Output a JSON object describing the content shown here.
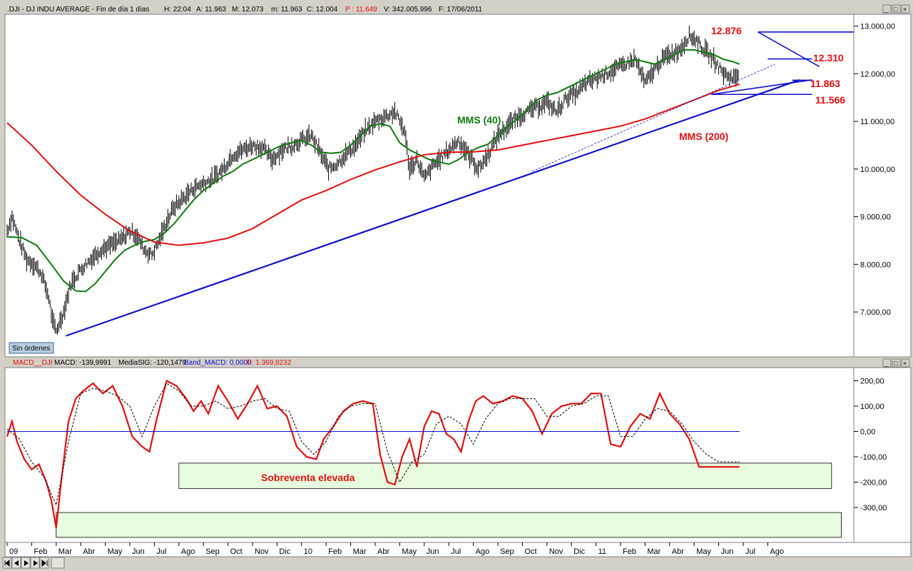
{
  "header": {
    "symbol": ".DJI - DJ INDU AVERAGE - Fin de día 1 días",
    "h": "H: 22:04",
    "a": "A: 11.963",
    "m": "M: 12.073",
    "mm": "m: 11.963",
    "c": "C: 12.004",
    "p": "P : 11.649",
    "v": "V: 342.005.996",
    "f": "F: 17/06/2011"
  },
  "macd_header": {
    "name": "MACD__DJI",
    "macd": "MACD: -139,9991",
    "signal": "MediaSIG: -120,1479",
    "band": "Band_MACD: 0,0000",
    "p": "P: 1.369,8232"
  },
  "sin_ordenes": "Sin órdenes",
  "x_labels": [
    "09",
    "Feb",
    "Mar",
    "Abr",
    "May",
    "Jun",
    "Jul",
    "Ago",
    "Sep",
    "Oct",
    "Nov",
    "Dic",
    "10",
    "Feb",
    "Mar",
    "Abr",
    "May",
    "Jun",
    "Jul",
    "Ago",
    "Sep",
    "Oct",
    "Nov",
    "Dic",
    "11",
    "Feb",
    "Mar",
    "Abr",
    "May",
    "Jun",
    "Jul",
    "Ago"
  ],
  "colors": {
    "bg": "#ffffff",
    "price": "#000000",
    "mms40": "#0e7a0e",
    "mms200": "#e01010",
    "trend": "#1010cc",
    "macd": "#e01010",
    "zone": "#e8fce0",
    "annot": "#e01010"
  },
  "chart_data": [
    {
      "type": "line",
      "title": ".DJI - DJ INDU AVERAGE",
      "ylim": [
        6100,
        13150
      ],
      "y_ticks": [
        "13.000,00",
        "12.000,00",
        "11.000,00",
        "10.000,00",
        "9.000,00",
        "8.000,00",
        "7.000,00"
      ],
      "x_unit": "month index since Jan 2009",
      "series": [
        {
          "name": "DJI",
          "role": "price",
          "x": [
            0,
            0.2,
            0.5,
            0.8,
            1.1,
            1.4,
            1.7,
            1.85,
            2.0,
            2.3,
            2.6,
            3.0,
            3.4,
            3.8,
            4.2,
            4.6,
            5.0,
            5.3,
            5.6,
            5.9,
            6.2,
            6.5,
            6.8,
            7.2,
            7.6,
            8.0,
            8.4,
            8.8,
            9.2,
            9.6,
            10.0,
            10.4,
            10.8,
            11.2,
            11.6,
            12.0,
            12.4,
            12.8,
            13.1,
            13.4,
            13.8,
            14.2,
            14.6,
            15.0,
            15.4,
            15.8,
            16.2,
            16.4,
            16.7,
            17.0,
            17.4,
            17.8,
            18.0,
            18.4,
            18.8,
            19.2,
            19.6,
            20.0,
            20.4,
            20.8,
            21.2,
            21.6,
            22.0,
            22.4,
            22.8,
            23.2,
            23.6,
            24.0,
            24.4,
            24.8,
            25.2,
            25.6,
            26.0,
            26.4,
            26.7,
            27.0,
            27.4,
            27.8,
            28.1,
            28.4,
            28.8,
            29.2,
            29.6,
            29.85
          ],
          "y": [
            8700,
            9000,
            8500,
            8100,
            8000,
            7800,
            7300,
            6800,
            6600,
            7000,
            7600,
            7900,
            8100,
            8300,
            8400,
            8500,
            8700,
            8600,
            8300,
            8200,
            8500,
            8900,
            9200,
            9400,
            9600,
            9700,
            9800,
            10000,
            10300,
            10400,
            10500,
            10450,
            10200,
            10400,
            10500,
            10600,
            10700,
            10300,
            10000,
            10100,
            10300,
            10500,
            10800,
            11000,
            11100,
            11200,
            10800,
            10000,
            10200,
            9800,
            10100,
            10300,
            10400,
            10600,
            10300,
            10000,
            10300,
            10700,
            10900,
            11100,
            11200,
            11300,
            11400,
            11200,
            11500,
            11600,
            11800,
            11900,
            12000,
            12100,
            12200,
            12300,
            11800,
            12100,
            12300,
            12400,
            12500,
            12800,
            12700,
            12500,
            12300,
            12000,
            11900,
            12004
          ]
        },
        {
          "name": "MMS (40)",
          "role": "ma40",
          "x": [
            0,
            0.6,
            1.2,
            1.8,
            2.3,
            2.8,
            3.2,
            3.6,
            4.0,
            4.4,
            4.8,
            5.2,
            5.6,
            6.0,
            6.4,
            6.8,
            7.2,
            7.6,
            8.0,
            8.4,
            8.8,
            9.2,
            9.6,
            10.0,
            10.4,
            10.8,
            11.2,
            11.6,
            12.0,
            12.4,
            12.8,
            13.2,
            13.6,
            14.0,
            14.4,
            14.8,
            15.2,
            15.6,
            16.0,
            16.4,
            16.8,
            17.2,
            17.6,
            18.0,
            18.4,
            18.8,
            19.2,
            19.6,
            20.0,
            20.4,
            20.8,
            21.2,
            21.6,
            22.0,
            22.4,
            22.8,
            23.2,
            23.6,
            24.0,
            24.4,
            24.8,
            25.2,
            25.6,
            26.0,
            26.4,
            26.8,
            27.2,
            27.6,
            28.0,
            28.4,
            28.8,
            29.2,
            29.6,
            29.85
          ],
          "y": [
            8580,
            8560,
            8400,
            8000,
            7650,
            7440,
            7430,
            7600,
            7850,
            8100,
            8300,
            8400,
            8480,
            8520,
            8650,
            8850,
            9100,
            9350,
            9550,
            9700,
            9850,
            9950,
            10100,
            10200,
            10300,
            10400,
            10500,
            10550,
            10600,
            10500,
            10350,
            10330,
            10350,
            10500,
            10700,
            10900,
            10950,
            10900,
            10550,
            10400,
            10300,
            10200,
            10150,
            10100,
            10200,
            10350,
            10450,
            10520,
            10700,
            10900,
            11050,
            11250,
            11450,
            11550,
            11600,
            11700,
            11800,
            11900,
            12000,
            12100,
            12200,
            12250,
            12300,
            12250,
            12200,
            12300,
            12400,
            12500,
            12500,
            12450,
            12400,
            12300,
            12250,
            12200
          ]
        },
        {
          "name": "MMS (200)",
          "role": "ma200",
          "x": [
            0,
            1,
            2,
            3,
            4,
            5,
            6,
            7,
            8,
            9,
            10,
            11,
            12,
            13,
            14,
            15,
            16,
            17,
            18,
            19,
            20,
            21,
            22,
            23,
            24,
            25,
            26,
            27,
            28,
            29,
            29.85
          ],
          "y": [
            10970,
            10500,
            9950,
            9450,
            9050,
            8700,
            8470,
            8400,
            8450,
            8550,
            8750,
            9050,
            9350,
            9550,
            9780,
            9980,
            10150,
            10300,
            10350,
            10360,
            10400,
            10500,
            10600,
            10700,
            10800,
            10900,
            11050,
            11250,
            11450,
            11650,
            11780
          ]
        }
      ]
    },
    {
      "type": "line",
      "title": "MACD__DJI",
      "ylim": [
        -410,
        250
      ],
      "y_ticks": [
        "200,00",
        "100,00",
        "0,00",
        "-100,00",
        "-200,00",
        "-300,00"
      ],
      "series": [
        {
          "name": "MACD",
          "role": "macd",
          "x": [
            0,
            0.2,
            0.4,
            0.7,
            1.0,
            1.3,
            1.6,
            1.8,
            2.0,
            2.2,
            2.5,
            2.8,
            3.1,
            3.5,
            3.9,
            4.3,
            4.7,
            5.1,
            5.5,
            5.8,
            6.1,
            6.5,
            6.9,
            7.3,
            7.6,
            7.9,
            8.2,
            8.6,
            9.0,
            9.4,
            9.8,
            10.2,
            10.6,
            11.0,
            11.4,
            11.8,
            12.2,
            12.6,
            12.9,
            13.3,
            13.7,
            14.1,
            14.5,
            14.9,
            15.2,
            15.5,
            15.8,
            16.1,
            16.4,
            16.7,
            17.0,
            17.3,
            17.6,
            17.9,
            18.2,
            18.5,
            18.8,
            19.1,
            19.4,
            19.8,
            20.2,
            20.6,
            21.0,
            21.4,
            21.8,
            22.2,
            22.6,
            23.0,
            23.4,
            23.8,
            24.2,
            24.6,
            25.0,
            25.4,
            25.8,
            26.2,
            26.6,
            27.0,
            27.4,
            27.8,
            28.2,
            28.6,
            29.0,
            29.4,
            29.85
          ],
          "y": [
            -20,
            40,
            -40,
            -110,
            -150,
            -130,
            -200,
            -270,
            -380,
            -200,
            40,
            130,
            160,
            190,
            150,
            180,
            100,
            -20,
            -60,
            -80,
            50,
            200,
            180,
            130,
            80,
            120,
            70,
            180,
            120,
            50,
            110,
            180,
            90,
            100,
            60,
            -60,
            -100,
            -110,
            -30,
            20,
            80,
            110,
            120,
            110,
            -90,
            -200,
            -210,
            -100,
            -30,
            -140,
            20,
            80,
            70,
            -10,
            -30,
            -80,
            40,
            120,
            140,
            110,
            120,
            140,
            130,
            80,
            -10,
            70,
            100,
            110,
            110,
            150,
            150,
            -50,
            -60,
            20,
            70,
            50,
            150,
            70,
            30,
            -30,
            -140,
            -140,
            -140,
            -140,
            -140
          ]
        },
        {
          "name": "MediaSIG",
          "role": "signal",
          "x": [
            0,
            0.5,
            1,
            1.5,
            2,
            2.5,
            3,
            3.5,
            4,
            4.5,
            5,
            5.5,
            6,
            6.5,
            7,
            7.5,
            8,
            8.5,
            9,
            9.5,
            10,
            10.5,
            11,
            11.5,
            12,
            12.5,
            13,
            13.5,
            14,
            14.5,
            15,
            15.5,
            16,
            16.5,
            17,
            17.5,
            18,
            18.5,
            19,
            19.5,
            20,
            20.5,
            21,
            21.5,
            22,
            22.5,
            23,
            23.5,
            24,
            24.5,
            25,
            25.5,
            26,
            26.5,
            27,
            27.5,
            28,
            28.5,
            29,
            29.5,
            29.85
          ],
          "y": [
            10,
            -30,
            -120,
            -180,
            -290,
            -40,
            150,
            170,
            160,
            140,
            100,
            -20,
            100,
            190,
            160,
            100,
            100,
            120,
            90,
            100,
            120,
            130,
            90,
            80,
            -40,
            -90,
            -40,
            60,
            100,
            110,
            110,
            -80,
            -200,
            -120,
            -90,
            30,
            60,
            30,
            -50,
            50,
            110,
            130,
            130,
            130,
            60,
            60,
            100,
            110,
            140,
            140,
            -20,
            -20,
            50,
            90,
            80,
            30,
            -40,
            -90,
            -120,
            -120,
            -120
          ]
        },
        {
          "name": "Band_MACD",
          "role": "band",
          "x": [
            0,
            29.85
          ],
          "y": [
            0,
            0
          ]
        }
      ]
    }
  ],
  "annotations": {
    "high": "12.876",
    "mid": "12.310",
    "low1": "11.863",
    "low2": "11.566",
    "mms40": "MMS (40)",
    "mms200": "MMS (200)",
    "sobreventa": "Sobreventa elevada"
  }
}
